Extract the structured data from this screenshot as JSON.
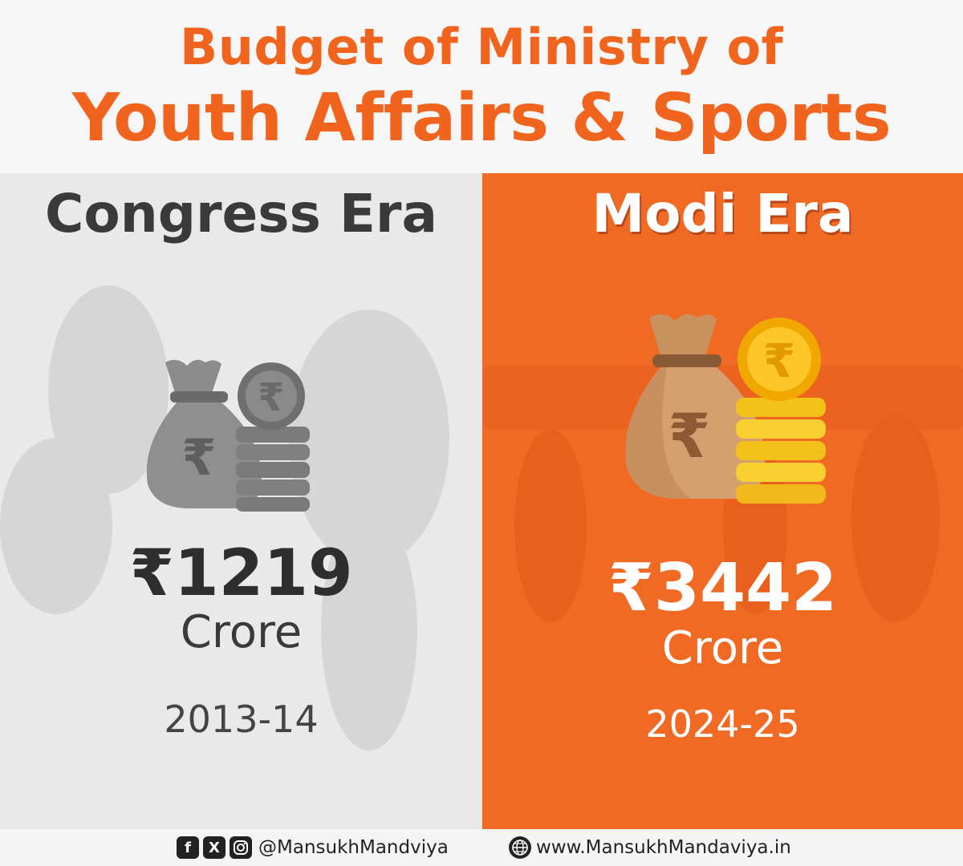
{
  "header": {
    "title_line1": "Budget of Ministry of",
    "title_line2": "Youth Affairs & Sports"
  },
  "panels": {
    "left": {
      "era": "Congress Era",
      "amount": "₹1219",
      "unit": "Crore",
      "year": "2013-14",
      "icon": "money-bag-coins-icon",
      "coin_symbol": "₹",
      "colors": {
        "background": "#e9e9e9",
        "icon": "#8a8a8a",
        "text": "#2e2e2e"
      }
    },
    "right": {
      "era": "Modi Era",
      "amount": "₹3442",
      "unit": "Crore",
      "year": "2024-25",
      "icon": "money-bag-coins-icon",
      "coin_symbol": "₹",
      "colors": {
        "background": "#f06a24",
        "bag": "#c8915f",
        "coin": "#f7b81a",
        "text": "#ffffff"
      }
    }
  },
  "footer": {
    "social_icons": [
      "facebook-icon",
      "x-icon",
      "instagram-icon"
    ],
    "handle": "@MansukhMandviya",
    "globe_icon": "globe-icon",
    "website": "www.MansukhMandaviya.in"
  },
  "colors": {
    "accent": "#f0641e"
  }
}
